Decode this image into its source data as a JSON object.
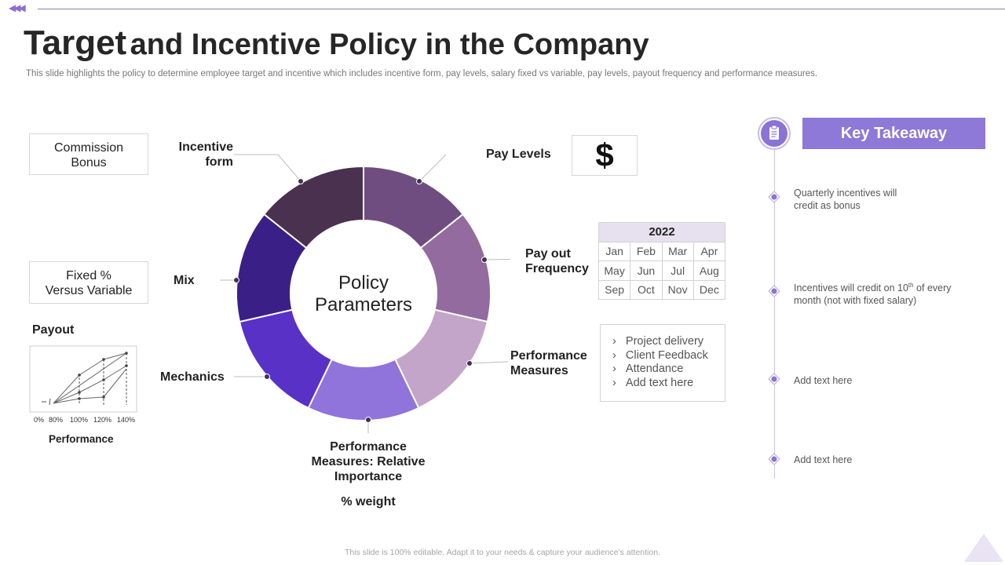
{
  "header": {
    "title_first": "Target",
    "title_rest": "and Incentive Policy in the Company",
    "subtitle": "This slide highlights the policy to  determine employee target and incentive which includes incentive form, pay levels, salary fixed vs variable, pay levels, payout frequency and performance measures."
  },
  "center": {
    "line1": "Policy",
    "line2": "Parameters"
  },
  "segments": [
    {
      "name": "Pay Levels",
      "color": "#6f4d80"
    },
    {
      "name": "Pay out Frequency",
      "color": "#946b9e"
    },
    {
      "name": "Performance Measures",
      "color": "#c2a5c9"
    },
    {
      "name": "Performance Measures: Relative Importance",
      "color": "#9074dc"
    },
    {
      "name": "Mechanics",
      "color": "#5a31c6"
    },
    {
      "name": "Mix",
      "color": "#3a1f87"
    },
    {
      "name": "Incentive form",
      "color": "#4a3150"
    }
  ],
  "labels": {
    "incentive_l1": "Incentive",
    "incentive_l2": "form",
    "pay_levels": "Pay Levels",
    "payout_l1": "Pay out",
    "payout_l2": "Frequency",
    "perf_l1": "Performance",
    "perf_l2": "Measures",
    "mix": "Mix",
    "mechanics": "Mechanics",
    "rel_l1": "Performance",
    "rel_l2": "Measures:  Relative",
    "rel_l3": "Importance",
    "weight": "% weight"
  },
  "left_boxes": {
    "commission_l1": "Commission",
    "commission_l2": "Bonus",
    "fixed_l1": "Fixed %",
    "fixed_l2": "Versus Variable"
  },
  "payout_chart": {
    "title": "Payout",
    "xlabel": "Performance",
    "ticks": [
      "0%",
      "80%",
      "100%",
      "120%",
      "140%"
    ]
  },
  "dollar_symbol": "$",
  "calendar": {
    "year": "2022",
    "rows": [
      [
        "Jan",
        "Feb",
        "Mar",
        "Apr"
      ],
      [
        "May",
        "Jun",
        "Jul",
        "Aug"
      ],
      [
        "Sep",
        "Oct",
        "Nov",
        "Dec"
      ]
    ]
  },
  "measures": [
    "Project delivery",
    "Client Feedback",
    "Attendance",
    "Add text here"
  ],
  "takeaway": {
    "title": "Key Takeaway",
    "item1_l1": "Quarterly incentives  will",
    "item1_l2": "credit as bonus",
    "item2_pre": "Incentives  will credit on 10",
    "item2_sup": "th",
    "item2_post": " of every",
    "item2_l2": "month (not with fixed salary)",
    "item3": "Add text here",
    "item4": "Add text here"
  },
  "footer": "This slide is 100% editable.  Adapt it to your needs & capture your audience’s attention.",
  "colors": {
    "accent": "#8e78d8",
    "dark": "#262626"
  }
}
